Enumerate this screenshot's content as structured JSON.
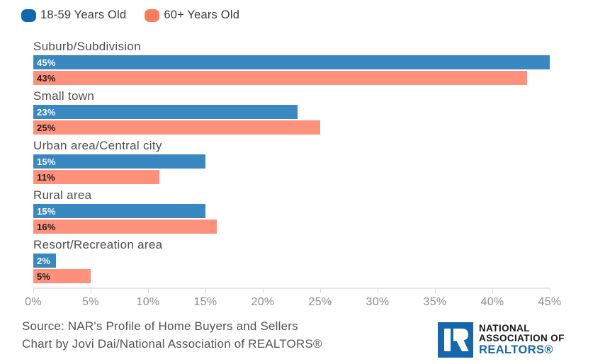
{
  "page": {
    "background": "#ffffff"
  },
  "legend": {
    "items": [
      {
        "label": "18-59 Years Old",
        "color": "#1268ad"
      },
      {
        "label": "60+ Years Old",
        "color": "#f97e5b"
      }
    ]
  },
  "chart_data": {
    "type": "bar",
    "orientation": "horizontal",
    "title": "",
    "categories": [
      "Suburb/Subdivision",
      "Small town",
      "Urban area/Central city",
      "Rural area",
      "Resort/Recreation area"
    ],
    "series": [
      {
        "name": "18-59 Years Old",
        "swatch_color": "#1268ad",
        "bar_color": "#3a88c2",
        "value_label_color": "#ffffff",
        "values": [
          45,
          23,
          15,
          15,
          2
        ]
      },
      {
        "name": "60+ Years Old",
        "swatch_color": "#f97e5b",
        "bar_color": "#fd917b",
        "value_label_color": "#1c1c1c",
        "values": [
          43,
          25,
          11,
          16,
          5
        ]
      }
    ],
    "value_suffix": "%",
    "xlim": [
      0,
      45
    ],
    "x_ticks": [
      "0%",
      "5%",
      "10%",
      "15%",
      "20%",
      "25%",
      "30%",
      "35%",
      "40%",
      "45%"
    ],
    "grid": false,
    "legend_position": "top-left"
  },
  "footer": {
    "source_line1": "Source: NAR's Profile of Home Buyers and Sellers",
    "source_line2": "Chart by Jovi Dai/National Association of REALTORS®"
  },
  "logo": {
    "line1": "NATIONAL",
    "line2": "ASSOCIATION OF",
    "line3": "REALTORS®",
    "blue": "#1467ac"
  }
}
